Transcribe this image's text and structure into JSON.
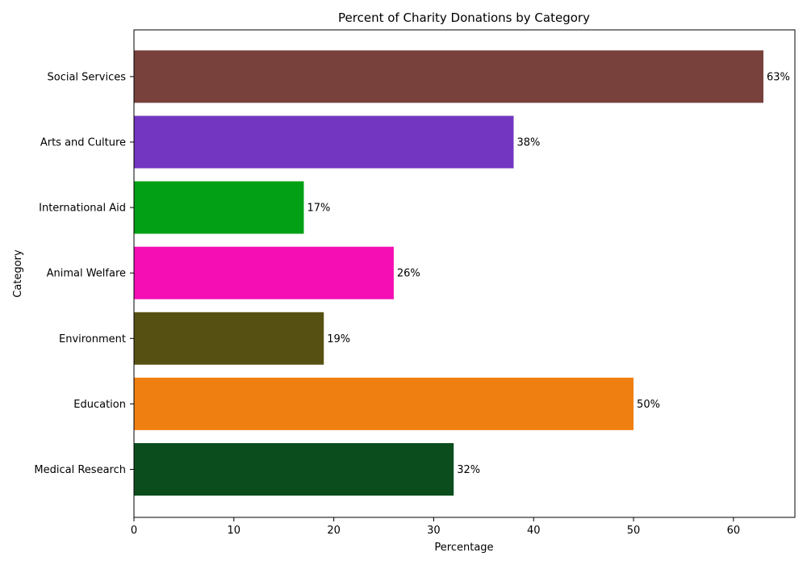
{
  "chart_data": {
    "type": "bar",
    "orientation": "horizontal",
    "title": "Percent of Charity Donations by Category",
    "xlabel": "Percentage",
    "ylabel": "Category",
    "xlim": [
      0,
      66.15
    ],
    "xticks": [
      "0",
      "10",
      "20",
      "30",
      "40",
      "50",
      "60"
    ],
    "grid": false,
    "value_suffix": "%",
    "categories": [
      "Medical Research",
      "Education",
      "Environment",
      "Animal Welfare",
      "International Aid",
      "Arts and Culture",
      "Social Services"
    ],
    "values": [
      32,
      50,
      19,
      26,
      17,
      38,
      63
    ],
    "value_labels": [
      "32%",
      "50%",
      "19%",
      "26%",
      "17%",
      "38%",
      "63%"
    ],
    "colors": [
      "#0b4d1c",
      "#f07f12",
      "#565112",
      "#f50eb3",
      "#02a014",
      "#7236c0",
      "#78413c"
    ]
  }
}
